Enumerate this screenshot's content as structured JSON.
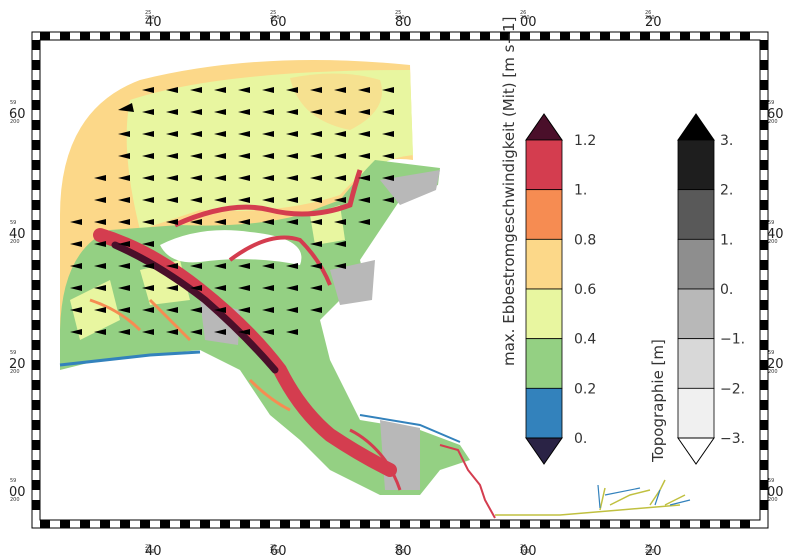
{
  "map": {
    "top_ticks": [
      {
        "prefix": "25",
        "sub": "200",
        "label": "40"
      },
      {
        "prefix": "25",
        "sub": "200",
        "label": "60"
      },
      {
        "prefix": "25",
        "sub": "200",
        "label": "80"
      },
      {
        "prefix": "26",
        "sub": "200",
        "label": "00"
      },
      {
        "prefix": "26",
        "sub": "200",
        "label": "20"
      }
    ],
    "side_ticks": [
      {
        "prefix": "59",
        "sub": "200",
        "label": "60"
      },
      {
        "prefix": "59",
        "sub": "200",
        "label": "40"
      },
      {
        "prefix": "59",
        "sub": "200",
        "label": "20"
      },
      {
        "prefix": "59",
        "sub": "200",
        "label": "00"
      }
    ]
  },
  "speed_colorbar": {
    "title": "max. Ebbestromgeschwindigkeit (Mit) [m s−1]",
    "labels": [
      "1.2",
      "1.",
      "0.8",
      "0.6",
      "0.4",
      "0.2",
      "0."
    ],
    "colors": [
      "#d43d4f",
      "#f68c52",
      "#fcd889",
      "#e8f6a0",
      "#94d083",
      "#3382bc"
    ],
    "over_color": "#4a0f2a",
    "under_color": "#2a2345"
  },
  "topo_colorbar": {
    "title": "Topographie [m]",
    "labels": [
      "3.",
      "2.",
      "1.",
      "0.",
      "−1.",
      "−2.",
      "−3."
    ],
    "colors": [
      "#1e1e1e",
      "#595959",
      "#8e8e8e",
      "#b8b8b8",
      "#d8d8d8",
      "#f0f0f0"
    ],
    "over_color": "#000000",
    "under_color": "#ffffff"
  }
}
